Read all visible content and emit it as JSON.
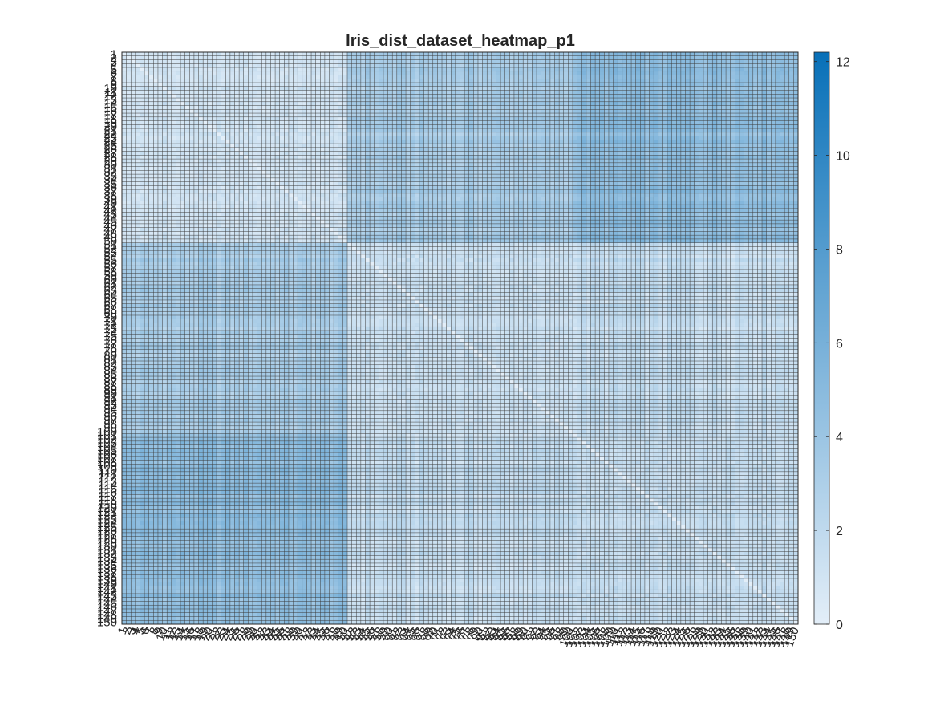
{
  "chart_data": {
    "type": "heatmap",
    "title": "Iris_dist_dataset_heatmap_p1",
    "xlabel": "",
    "ylabel": "",
    "matrix_size": 150,
    "row_labels": "1..150",
    "col_labels": "1..150",
    "approx_block_means": {
      "groups": [
        "1-50",
        "51-100",
        "101-150"
      ],
      "values": [
        [
          0.7,
          3.3,
          4.8
        ],
        [
          3.3,
          1.1,
          1.8
        ],
        [
          4.8,
          1.8,
          1.3
        ]
      ]
    },
    "color_range": [
      0,
      12.2
    ],
    "colormap": {
      "low": "#e3eef8",
      "high": "#0870b8"
    },
    "colorbar": {
      "position": "right",
      "ticks": [
        0,
        2,
        4,
        6,
        8,
        10,
        12
      ]
    },
    "grid": true
  }
}
